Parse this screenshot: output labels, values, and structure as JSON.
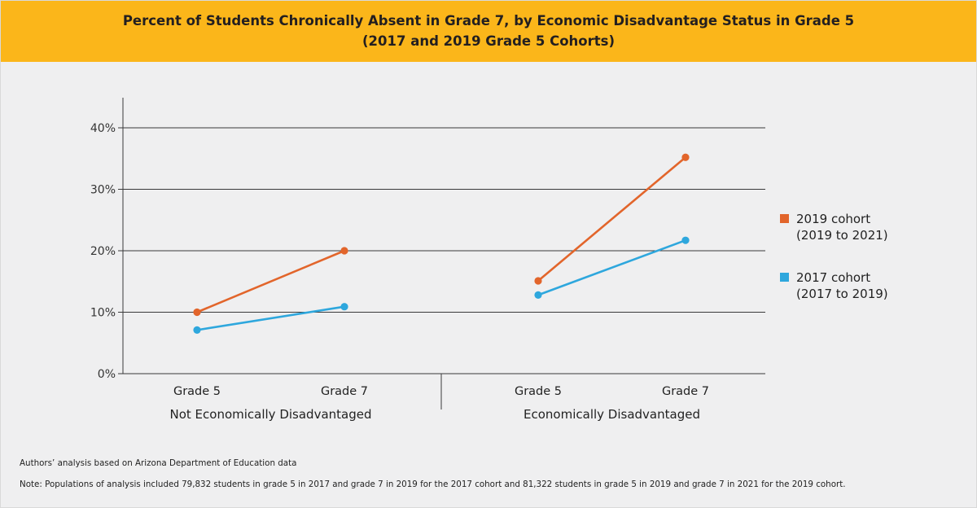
{
  "header": {
    "title_line1": "Percent of Students Chronically Absent in Grade 7, by Economic Disadvantage Status in Grade 5",
    "title_line2": "(2017 and 2019 Grade 5 Cohorts)"
  },
  "chart_data": {
    "type": "line",
    "title": "Percent of Students Chronically Absent in Grade 7, by Economic Disadvantage Status in Grade 5 (2017 and 2019 Grade 5 Cohorts)",
    "ylim": [
      0,
      45
    ],
    "yticks": [
      0,
      10,
      20,
      30,
      40
    ],
    "ytick_labels": [
      "0%",
      "10%",
      "20%",
      "30%",
      "40%"
    ],
    "grid": true,
    "groups": [
      {
        "label": "Not Economically Disadvantaged",
        "categories": [
          "Grade 5",
          "Grade 7"
        ]
      },
      {
        "label": "Economically Disadvantaged",
        "categories": [
          "Grade 5",
          "Grade 7"
        ]
      }
    ],
    "series": [
      {
        "name": "2019 cohort",
        "period": "(2019 to 2021)",
        "color": "#e2652b",
        "values": [
          [
            10,
            20
          ],
          [
            15.1,
            35.2
          ]
        ]
      },
      {
        "name": "2017 cohort",
        "period": "(2017 to 2019)",
        "color": "#2ea7dd",
        "values": [
          [
            7.1,
            10.9
          ],
          [
            12.8,
            21.7
          ]
        ]
      }
    ],
    "legend_position": "right"
  },
  "footer": {
    "source": "Authors’ analysis based on Arizona Department of Education data",
    "note": "Note: Populations of analysis included 79,832 students in grade 5 in 2017 and grade 7 in 2019 for the 2017 cohort and 81,322 students in grade 5 in 2019 and grade 7 in 2021 for the 2019 cohort."
  }
}
